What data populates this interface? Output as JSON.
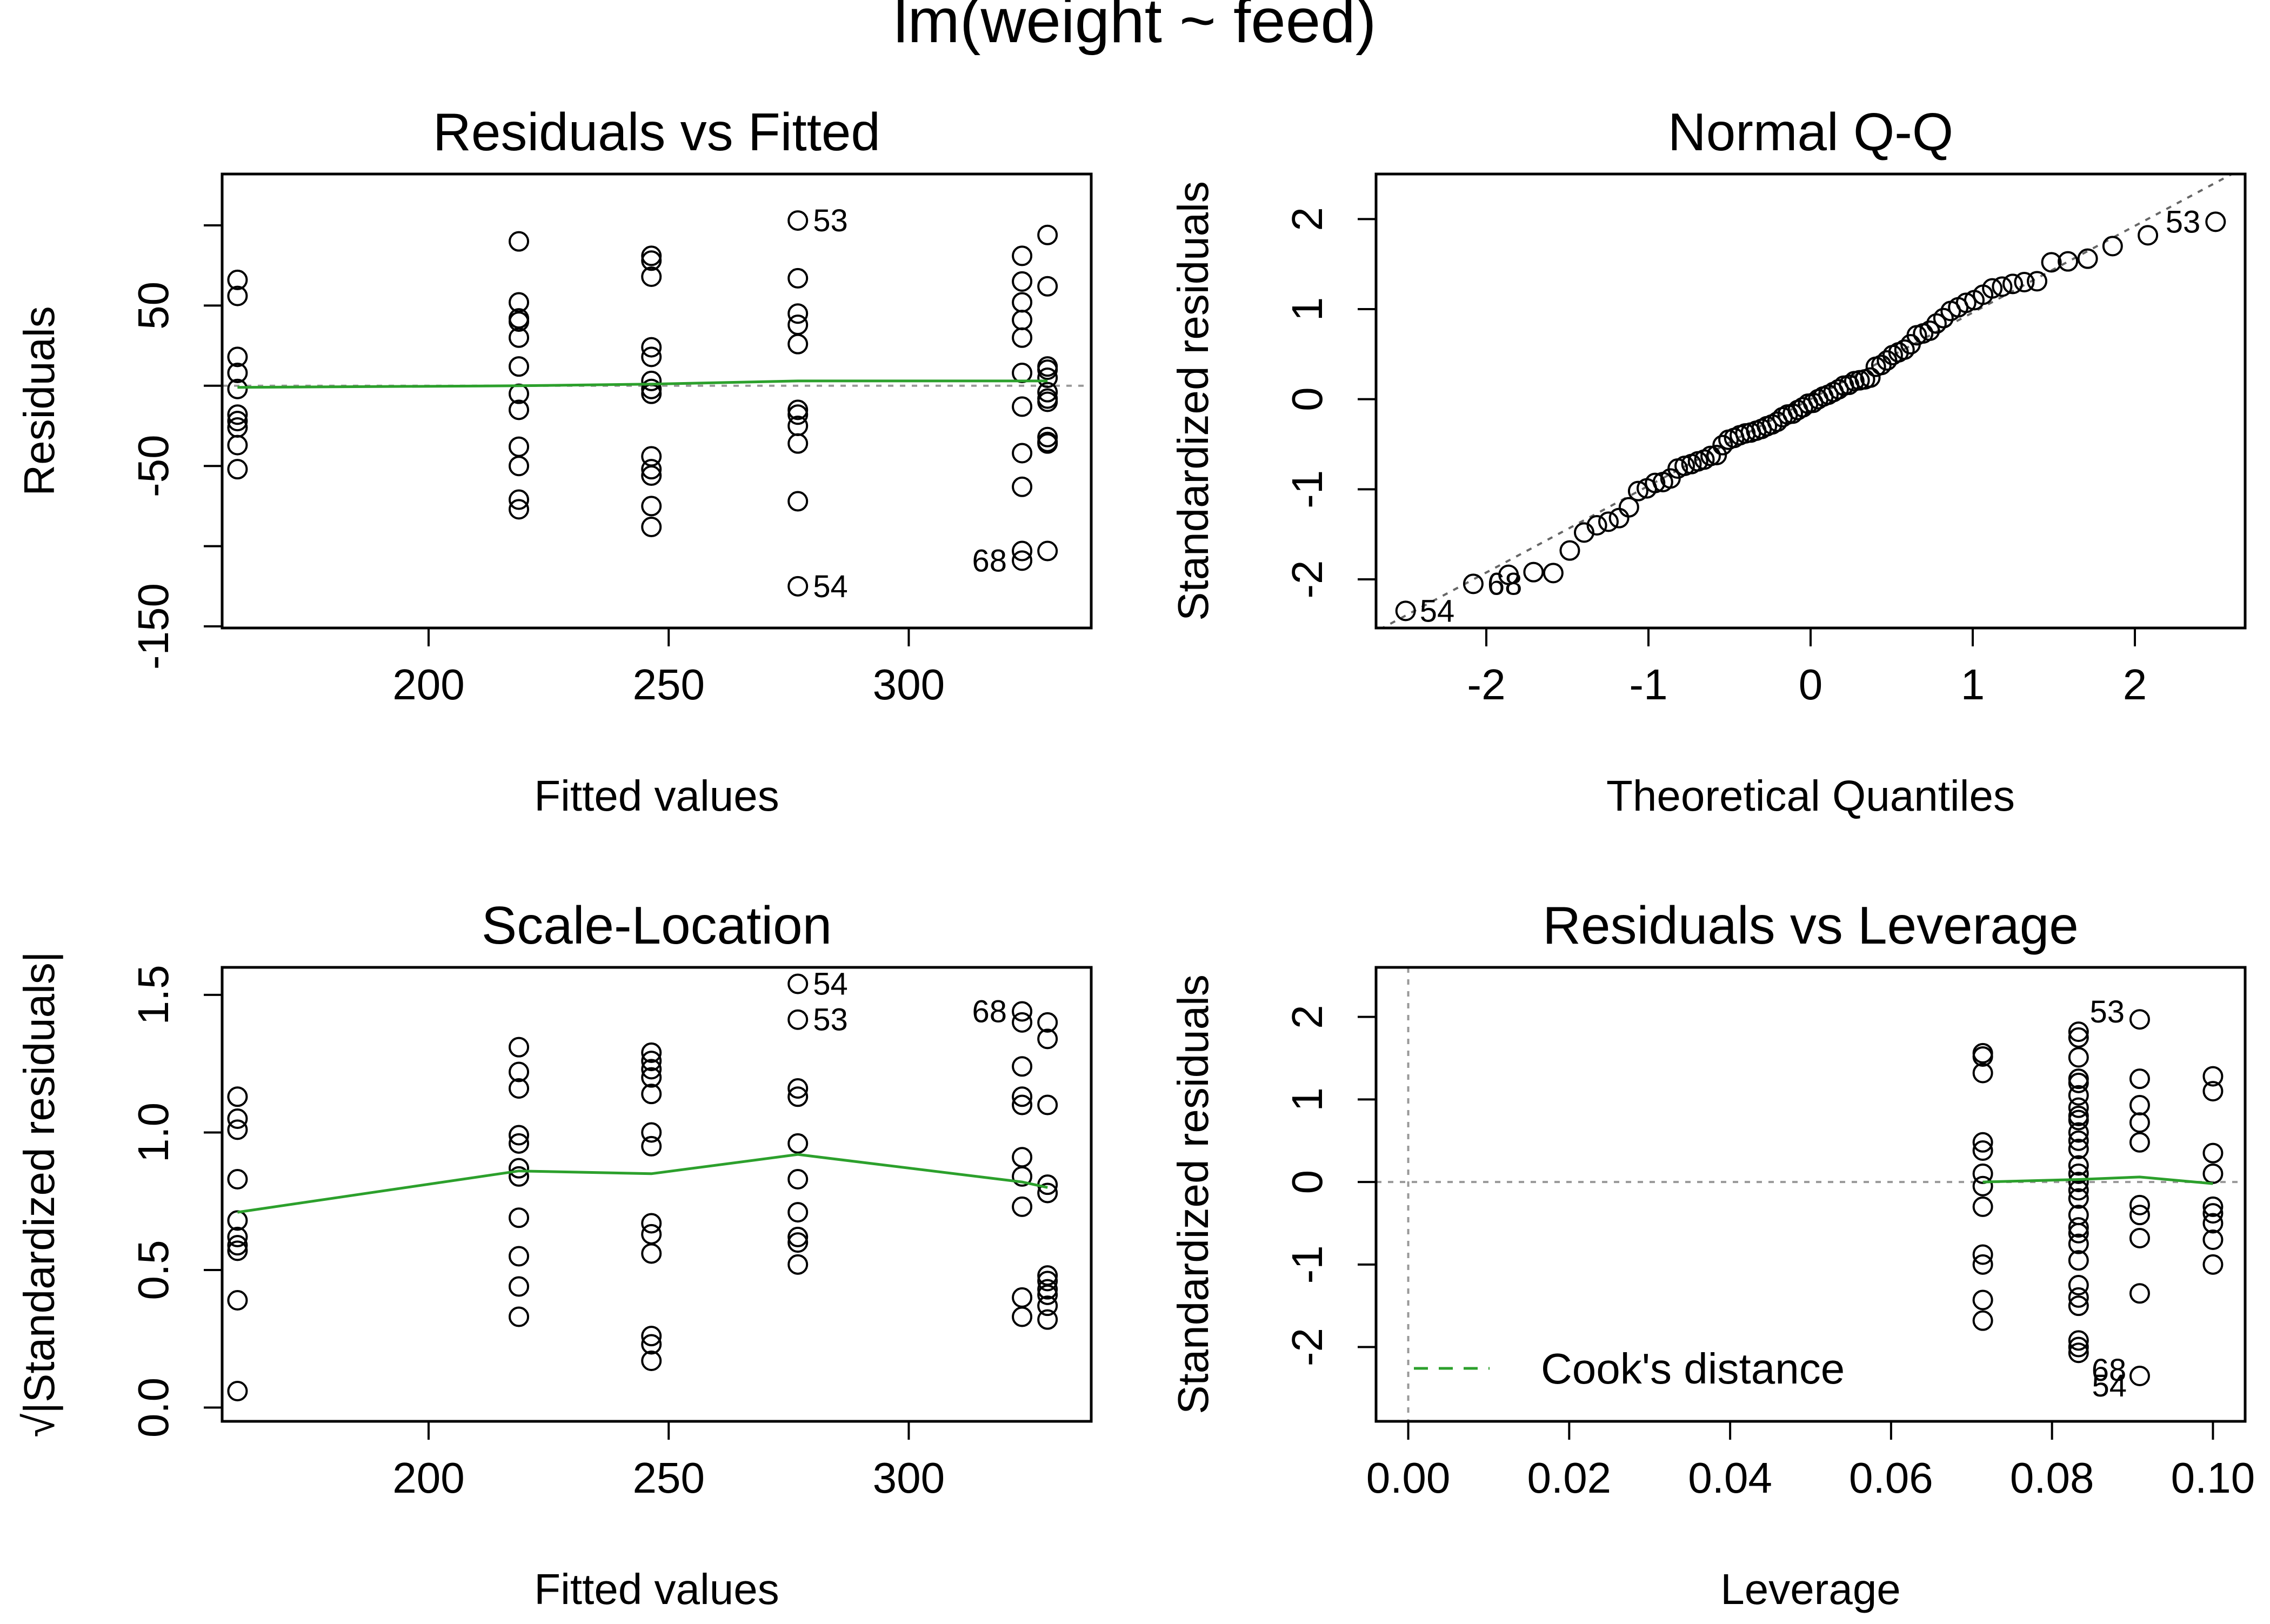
{
  "figure": {
    "title": "lm(weight ~ feed)"
  },
  "colors": {
    "smooth": "#2ca02c",
    "reference": "#999999",
    "qqline": "#666666",
    "points": "#000000",
    "frame": "#000000"
  },
  "chart_data": [
    {
      "type": "scatter",
      "title": "Residuals vs Fitted",
      "xlabel": "Fitted values",
      "ylabel": "Residuals",
      "xlim": [
        157,
        338
      ],
      "ylim": [
        -151,
        132
      ],
      "x_ticks": [
        200,
        250,
        300
      ],
      "x_tick_labels": [
        "200",
        "250",
        "300"
      ],
      "y_ticks": [
        -150,
        -100,
        -50,
        0,
        50,
        100
      ],
      "y_tick_labels": [
        "-150",
        "",
        "-50",
        "",
        "50",
        ""
      ],
      "hline": 0,
      "points": [
        {
          "x": 160.2,
          "y": 66
        },
        {
          "x": 160.2,
          "y": 56
        },
        {
          "x": 160.2,
          "y": 18
        },
        {
          "x": 160.2,
          "y": 8
        },
        {
          "x": 160.2,
          "y": -2
        },
        {
          "x": 160.2,
          "y": -18
        },
        {
          "x": 160.2,
          "y": -22
        },
        {
          "x": 160.2,
          "y": -26
        },
        {
          "x": 160.2,
          "y": -37
        },
        {
          "x": 160.2,
          "y": -52
        },
        {
          "x": 218.8,
          "y": 90
        },
        {
          "x": 218.8,
          "y": 52
        },
        {
          "x": 218.8,
          "y": 42
        },
        {
          "x": 218.8,
          "y": 40
        },
        {
          "x": 218.8,
          "y": 30
        },
        {
          "x": 218.8,
          "y": 12
        },
        {
          "x": 218.8,
          "y": -5
        },
        {
          "x": 218.8,
          "y": -15
        },
        {
          "x": 218.8,
          "y": -38
        },
        {
          "x": 218.8,
          "y": -50
        },
        {
          "x": 218.8,
          "y": -71
        },
        {
          "x": 218.8,
          "y": -77
        },
        {
          "x": 246.4,
          "y": 81
        },
        {
          "x": 246.4,
          "y": 78
        },
        {
          "x": 246.4,
          "y": 68
        },
        {
          "x": 246.4,
          "y": 24
        },
        {
          "x": 246.4,
          "y": 18
        },
        {
          "x": 246.4,
          "y": 3
        },
        {
          "x": 246.4,
          "y": -2
        },
        {
          "x": 246.4,
          "y": -5
        },
        {
          "x": 246.4,
          "y": -44
        },
        {
          "x": 246.4,
          "y": -52
        },
        {
          "x": 246.4,
          "y": -56
        },
        {
          "x": 246.4,
          "y": -75
        },
        {
          "x": 246.4,
          "y": -88
        },
        {
          "x": 276.9,
          "y": 103
        },
        {
          "x": 276.9,
          "y": 67
        },
        {
          "x": 276.9,
          "y": 45
        },
        {
          "x": 276.9,
          "y": 38
        },
        {
          "x": 276.9,
          "y": 26
        },
        {
          "x": 276.9,
          "y": -15
        },
        {
          "x": 276.9,
          "y": -18
        },
        {
          "x": 276.9,
          "y": -25
        },
        {
          "x": 276.9,
          "y": -36
        },
        {
          "x": 276.9,
          "y": -72
        },
        {
          "x": 276.9,
          "y": -125
        },
        {
          "x": 323.6,
          "y": 81
        },
        {
          "x": 323.6,
          "y": 65
        },
        {
          "x": 323.6,
          "y": 52
        },
        {
          "x": 323.6,
          "y": 41
        },
        {
          "x": 323.6,
          "y": 30
        },
        {
          "x": 323.6,
          "y": 8
        },
        {
          "x": 323.6,
          "y": -13
        },
        {
          "x": 323.6,
          "y": -42
        },
        {
          "x": 323.6,
          "y": -63
        },
        {
          "x": 323.6,
          "y": -103
        },
        {
          "x": 323.6,
          "y": -109
        },
        {
          "x": 328.9,
          "y": 94
        },
        {
          "x": 328.9,
          "y": 62
        },
        {
          "x": 328.9,
          "y": 12
        },
        {
          "x": 328.9,
          "y": 10
        },
        {
          "x": 328.9,
          "y": 5
        },
        {
          "x": 328.9,
          "y": -4
        },
        {
          "x": 328.9,
          "y": -8
        },
        {
          "x": 328.9,
          "y": -10
        },
        {
          "x": 328.9,
          "y": -32
        },
        {
          "x": 328.9,
          "y": -35
        },
        {
          "x": 328.9,
          "y": -36
        },
        {
          "x": 328.9,
          "y": -103
        }
      ],
      "smooth": {
        "x": [
          160.2,
          218.8,
          246.4,
          276.9,
          323.6,
          328.9
        ],
        "y": [
          -1,
          0,
          1,
          3,
          3,
          3
        ]
      },
      "point_labels": [
        {
          "x": 276.9,
          "y": 103,
          "text": "53",
          "side": "right"
        },
        {
          "x": 276.9,
          "y": -125,
          "text": "54",
          "side": "right"
        },
        {
          "x": 323.6,
          "y": -109,
          "text": "68",
          "side": "left"
        }
      ]
    },
    {
      "type": "scatter",
      "title": "Normal Q-Q",
      "xlabel": "Theoretical Quantiles",
      "ylabel": "Standardized residuals",
      "xlim": [
        -2.68,
        2.68
      ],
      "ylim": [
        -2.54,
        2.5
      ],
      "x_ticks": [
        -2,
        -1,
        0,
        1,
        2
      ],
      "x_tick_labels": [
        "-2",
        "-1",
        "0",
        "1",
        "2"
      ],
      "y_ticks": [
        -2,
        -1,
        0,
        1,
        2
      ],
      "y_tick_labels": [
        "-2",
        "-1",
        "0",
        "1",
        "2"
      ],
      "qqline": {
        "intercept": 0.0,
        "slope": 0.962
      },
      "qq_sample": [
        -2.35,
        -2.05,
        -1.95,
        -1.92,
        -1.93,
        -1.68,
        -1.48,
        -1.4,
        -1.36,
        -1.32,
        -1.2,
        -1.02,
        -0.99,
        -0.93,
        -0.92,
        -0.88,
        -0.77,
        -0.74,
        -0.72,
        -0.69,
        -0.67,
        -0.63,
        -0.62,
        -0.51,
        -0.45,
        -0.43,
        -0.4,
        -0.38,
        -0.37,
        -0.35,
        -0.33,
        -0.3,
        -0.28,
        -0.25,
        -0.2,
        -0.17,
        -0.16,
        -0.12,
        -0.09,
        -0.05,
        -0.04,
        0.0,
        0.03,
        0.05,
        0.08,
        0.11,
        0.15,
        0.16,
        0.2,
        0.21,
        0.22,
        0.24,
        0.36,
        0.38,
        0.43,
        0.49,
        0.52,
        0.55,
        0.61,
        0.71,
        0.73,
        0.76,
        0.84,
        0.9,
        0.98,
        1.02,
        1.07,
        1.1,
        1.16,
        1.23,
        1.25,
        1.28,
        1.3,
        1.31,
        1.52,
        1.53,
        1.56,
        1.7,
        1.82,
        1.97
      ],
      "point_labels": [
        {
          "rank": 80,
          "text": "53",
          "side": "left"
        },
        {
          "rank": 1,
          "text": "54",
          "side": "right"
        },
        {
          "rank": 2,
          "text": "68",
          "side": "right"
        }
      ]
    },
    {
      "type": "scatter",
      "title": "Scale-Location",
      "xlabel": "Fitted values",
      "ylabel": "|Standardized residuals|",
      "ylabel_prefix": "√",
      "xlim": [
        157,
        338
      ],
      "ylim": [
        -0.05,
        1.6
      ],
      "x_ticks": [
        200,
        250,
        300
      ],
      "x_tick_labels": [
        "200",
        "250",
        "300"
      ],
      "y_ticks": [
        0.0,
        0.5,
        1.0,
        1.5
      ],
      "y_tick_labels": [
        "0.0",
        "0.5",
        "1.0",
        "1.5"
      ],
      "points": [
        {
          "x": 160.2,
          "y": 1.13
        },
        {
          "x": 160.2,
          "y": 1.05
        },
        {
          "x": 160.2,
          "y": 1.01
        },
        {
          "x": 160.2,
          "y": 0.83
        },
        {
          "x": 160.2,
          "y": 0.68
        },
        {
          "x": 160.2,
          "y": 0.62
        },
        {
          "x": 160.2,
          "y": 0.59
        },
        {
          "x": 160.2,
          "y": 0.57
        },
        {
          "x": 160.2,
          "y": 0.39
        },
        {
          "x": 160.2,
          "y": 0.06
        },
        {
          "x": 218.8,
          "y": 1.31
        },
        {
          "x": 218.8,
          "y": 1.22
        },
        {
          "x": 218.8,
          "y": 1.16
        },
        {
          "x": 218.8,
          "y": 0.99
        },
        {
          "x": 218.8,
          "y": 0.96
        },
        {
          "x": 218.8,
          "y": 0.87
        },
        {
          "x": 218.8,
          "y": 0.84
        },
        {
          "x": 218.8,
          "y": 0.69
        },
        {
          "x": 218.8,
          "y": 0.55
        },
        {
          "x": 218.8,
          "y": 0.44
        },
        {
          "x": 218.8,
          "y": 0.33
        },
        {
          "x": 246.4,
          "y": 1.29
        },
        {
          "x": 246.4,
          "y": 1.26
        },
        {
          "x": 246.4,
          "y": 1.23
        },
        {
          "x": 246.4,
          "y": 1.2
        },
        {
          "x": 246.4,
          "y": 1.14
        },
        {
          "x": 246.4,
          "y": 1.0
        },
        {
          "x": 246.4,
          "y": 0.95
        },
        {
          "x": 246.4,
          "y": 0.67
        },
        {
          "x": 246.4,
          "y": 0.63
        },
        {
          "x": 246.4,
          "y": 0.56
        },
        {
          "x": 246.4,
          "y": 0.26
        },
        {
          "x": 246.4,
          "y": 0.23
        },
        {
          "x": 246.4,
          "y": 0.17
        },
        {
          "x": 276.9,
          "y": 1.54
        },
        {
          "x": 276.9,
          "y": 1.41
        },
        {
          "x": 276.9,
          "y": 1.16
        },
        {
          "x": 276.9,
          "y": 1.13
        },
        {
          "x": 276.9,
          "y": 0.96
        },
        {
          "x": 276.9,
          "y": 0.83
        },
        {
          "x": 276.9,
          "y": 0.71
        },
        {
          "x": 276.9,
          "y": 0.62
        },
        {
          "x": 276.9,
          "y": 0.6
        },
        {
          "x": 276.9,
          "y": 0.52
        },
        {
          "x": 323.6,
          "y": 1.44
        },
        {
          "x": 323.6,
          "y": 1.4
        },
        {
          "x": 323.6,
          "y": 1.24
        },
        {
          "x": 323.6,
          "y": 1.13
        },
        {
          "x": 323.6,
          "y": 1.1
        },
        {
          "x": 323.6,
          "y": 0.91
        },
        {
          "x": 323.6,
          "y": 0.84
        },
        {
          "x": 323.6,
          "y": 0.73
        },
        {
          "x": 323.6,
          "y": 0.4
        },
        {
          "x": 323.6,
          "y": 0.33
        },
        {
          "x": 328.9,
          "y": 1.4
        },
        {
          "x": 328.9,
          "y": 1.34
        },
        {
          "x": 328.9,
          "y": 1.1
        },
        {
          "x": 328.9,
          "y": 0.81
        },
        {
          "x": 328.9,
          "y": 0.78
        },
        {
          "x": 328.9,
          "y": 0.48
        },
        {
          "x": 328.9,
          "y": 0.46
        },
        {
          "x": 328.9,
          "y": 0.43
        },
        {
          "x": 328.9,
          "y": 0.41
        },
        {
          "x": 328.9,
          "y": 0.37
        },
        {
          "x": 328.9,
          "y": 0.32
        }
      ],
      "smooth": {
        "x": [
          160.2,
          218.8,
          246.4,
          276.9,
          323.6,
          328.9
        ],
        "y": [
          0.71,
          0.86,
          0.85,
          0.92,
          0.82,
          0.8
        ]
      },
      "point_labels": [
        {
          "x": 276.9,
          "y": 1.54,
          "text": "54",
          "side": "right"
        },
        {
          "x": 276.9,
          "y": 1.41,
          "text": "53",
          "side": "right"
        },
        {
          "x": 323.6,
          "y": 1.44,
          "text": "68",
          "side": "left"
        }
      ]
    },
    {
      "type": "scatter",
      "title": "Residuals vs Leverage",
      "xlabel": "Leverage",
      "ylabel": "Standardized residuals",
      "xlim": [
        -0.004,
        0.104
      ],
      "ylim": [
        -2.9,
        2.6
      ],
      "x_ticks": [
        0.0,
        0.02,
        0.04,
        0.06,
        0.08,
        0.1
      ],
      "x_tick_labels": [
        "0.00",
        "0.02",
        "0.04",
        "0.06",
        "0.08",
        "0.10"
      ],
      "y_ticks": [
        -2,
        -1,
        0,
        1,
        2
      ],
      "y_tick_labels": [
        "-2",
        "-1",
        "0",
        "1",
        "2"
      ],
      "hline": 0,
      "vline": 0,
      "points": [
        {
          "x": 0.0714,
          "y": 1.56
        },
        {
          "x": 0.0714,
          "y": 1.52
        },
        {
          "x": 0.0714,
          "y": 1.32
        },
        {
          "x": 0.0714,
          "y": 0.48
        },
        {
          "x": 0.0714,
          "y": 0.38
        },
        {
          "x": 0.0714,
          "y": 0.1
        },
        {
          "x": 0.0714,
          "y": -0.05
        },
        {
          "x": 0.0714,
          "y": -0.3
        },
        {
          "x": 0.0714,
          "y": -0.88
        },
        {
          "x": 0.0714,
          "y": -1.0
        },
        {
          "x": 0.0714,
          "y": -1.43
        },
        {
          "x": 0.0714,
          "y": -1.68
        },
        {
          "x": 0.0833,
          "y": 1.82
        },
        {
          "x": 0.0833,
          "y": 1.75
        },
        {
          "x": 0.0833,
          "y": 1.51
        },
        {
          "x": 0.0833,
          "y": 1.25
        },
        {
          "x": 0.0833,
          "y": 1.2
        },
        {
          "x": 0.0833,
          "y": 1.05
        },
        {
          "x": 0.0833,
          "y": 0.9
        },
        {
          "x": 0.0833,
          "y": 0.8
        },
        {
          "x": 0.0833,
          "y": 0.75
        },
        {
          "x": 0.0833,
          "y": 0.6
        },
        {
          "x": 0.0833,
          "y": 0.5
        },
        {
          "x": 0.0833,
          "y": 0.4
        },
        {
          "x": 0.0833,
          "y": 0.2
        },
        {
          "x": 0.0833,
          "y": 0.1
        },
        {
          "x": 0.0833,
          "y": 0.0
        },
        {
          "x": 0.0833,
          "y": -0.1
        },
        {
          "x": 0.0833,
          "y": -0.2
        },
        {
          "x": 0.0833,
          "y": -0.4
        },
        {
          "x": 0.0833,
          "y": -0.55
        },
        {
          "x": 0.0833,
          "y": -0.62
        },
        {
          "x": 0.0833,
          "y": -0.75
        },
        {
          "x": 0.0833,
          "y": -0.95
        },
        {
          "x": 0.0833,
          "y": -1.25
        },
        {
          "x": 0.0833,
          "y": -1.4
        },
        {
          "x": 0.0833,
          "y": -1.5
        },
        {
          "x": 0.0833,
          "y": -1.92
        },
        {
          "x": 0.0833,
          "y": -2.0
        },
        {
          "x": 0.0833,
          "y": -2.07
        },
        {
          "x": 0.0909,
          "y": 1.97
        },
        {
          "x": 0.0909,
          "y": 1.25
        },
        {
          "x": 0.0909,
          "y": 0.93
        },
        {
          "x": 0.0909,
          "y": 0.72
        },
        {
          "x": 0.0909,
          "y": 0.48
        },
        {
          "x": 0.0909,
          "y": -0.28
        },
        {
          "x": 0.0909,
          "y": -0.4
        },
        {
          "x": 0.0909,
          "y": -0.68
        },
        {
          "x": 0.0909,
          "y": -1.35
        },
        {
          "x": 0.0909,
          "y": -2.35
        },
        {
          "x": 0.1,
          "y": 1.28
        },
        {
          "x": 0.1,
          "y": 1.1
        },
        {
          "x": 0.1,
          "y": 0.35
        },
        {
          "x": 0.1,
          "y": 0.1
        },
        {
          "x": 0.1,
          "y": -0.3
        },
        {
          "x": 0.1,
          "y": -0.38
        },
        {
          "x": 0.1,
          "y": -0.5
        },
        {
          "x": 0.1,
          "y": -0.7
        },
        {
          "x": 0.1,
          "y": -1.0
        }
      ],
      "smooth": {
        "x": [
          0.0714,
          0.0833,
          0.0909,
          0.1
        ],
        "y": [
          0.0,
          0.03,
          0.06,
          -0.02
        ]
      },
      "point_labels": [
        {
          "x": 0.0909,
          "y": 1.97,
          "text": "53",
          "side": "left-up"
        },
        {
          "x": 0.0833,
          "y": -2.07,
          "text": "68",
          "side": "right-down"
        },
        {
          "x": 0.0909,
          "y": -2.35,
          "text": "54",
          "side": "left-down"
        }
      ],
      "legend": {
        "label": "Cook's distance",
        "position": "bottom-left"
      }
    }
  ]
}
